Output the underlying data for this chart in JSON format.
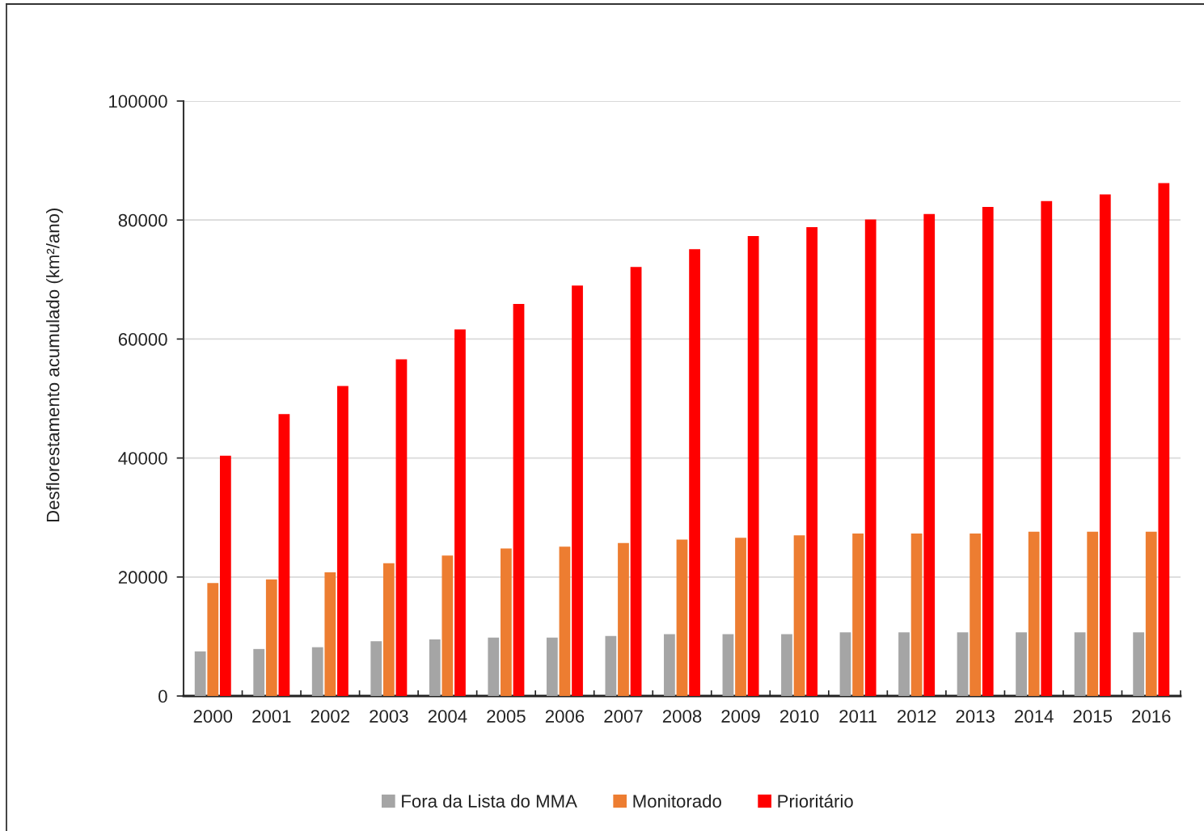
{
  "chart_data": {
    "type": "bar",
    "categories": [
      "2000",
      "2001",
      "2002",
      "2003",
      "2004",
      "2005",
      "2006",
      "2007",
      "2008",
      "2009",
      "2010",
      "2011",
      "2012",
      "2013",
      "2014",
      "2015",
      "2016"
    ],
    "series": [
      {
        "name": "Fora da Lista do MMA",
        "color": "#a5a5a5",
        "values": [
          7500,
          7900,
          8200,
          9200,
          9500,
          9800,
          9800,
          10100,
          10400,
          10400,
          10400,
          10700,
          10700,
          10700,
          10700,
          10700,
          10700
        ]
      },
      {
        "name": "Monitorado",
        "color": "#ed7d31",
        "values": [
          19000,
          19600,
          20800,
          22300,
          23600,
          24800,
          25100,
          25700,
          26300,
          26600,
          27000,
          27300,
          27300,
          27300,
          27600,
          27600,
          27600
        ]
      },
      {
        "name": "Prioritário",
        "color": "#ff0000",
        "values": [
          40400,
          47400,
          52100,
          56600,
          61600,
          65900,
          69000,
          72100,
          75100,
          77300,
          78800,
          80100,
          81000,
          82200,
          83200,
          84300,
          86200
        ]
      }
    ],
    "ylabel": "Desflorestamento acumulado (km²/ano)",
    "ylim": [
      0,
      100000
    ],
    "yticks": [
      0,
      20000,
      40000,
      60000,
      80000,
      100000
    ],
    "grid": "y",
    "legend": "bottom"
  }
}
